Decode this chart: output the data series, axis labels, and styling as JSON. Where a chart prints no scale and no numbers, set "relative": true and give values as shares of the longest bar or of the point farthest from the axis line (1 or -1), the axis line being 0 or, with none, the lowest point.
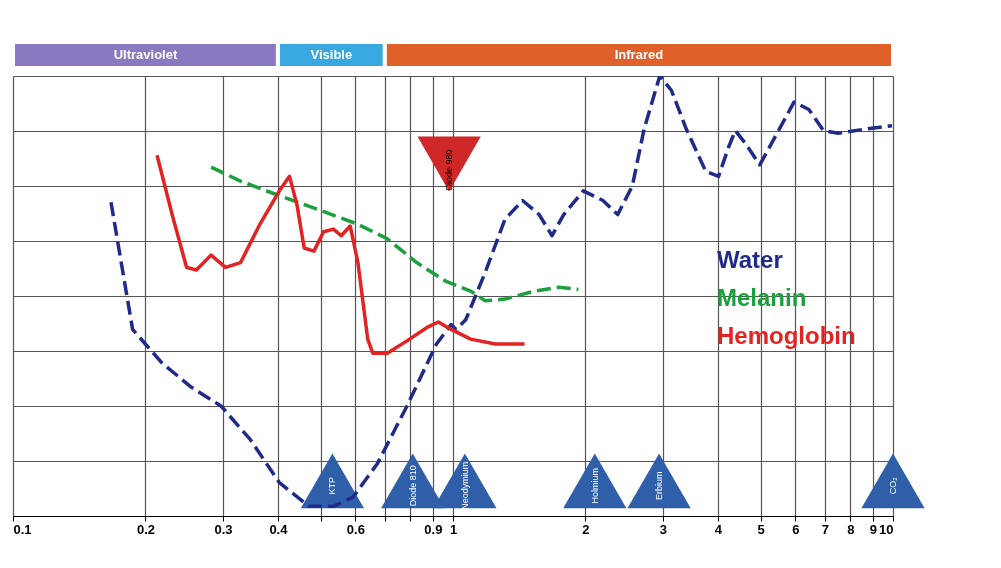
{
  "chart_data": {
    "type": "line",
    "relative": true,
    "log": "x",
    "xlim": [
      0.1,
      10
    ],
    "xticks": [
      0.1,
      0.2,
      0.3,
      0.4,
      {
        "value": 0.5,
        "label": null
      },
      0.6,
      {
        "value": 0.7,
        "label": null
      },
      {
        "value": 0.8,
        "label": null
      },
      0.9,
      1,
      2,
      3,
      4,
      5,
      6,
      7,
      8,
      9,
      10
    ],
    "grid": true,
    "tick_labels": "x",
    "legend": "right",
    "marker": "none",
    "series": [
      {
        "name": "Water",
        "color": "#1f2a8a",
        "line_style": "dashed",
        "x": [
          0.167,
          0.187,
          0.218,
          0.254,
          0.297,
          0.346,
          0.403,
          0.471,
          0.535,
          0.593,
          0.674,
          0.786,
          0.917,
          0.99,
          1.016,
          1.069,
          1.184,
          1.312,
          1.439,
          1.57,
          1.679,
          1.785,
          1.978,
          2.192,
          2.367,
          2.556,
          2.719,
          2.951,
          3.138,
          3.388,
          3.755,
          4.014,
          4.225,
          4.381,
          4.61,
          4.98,
          5.377,
          5.96,
          6.437,
          6.949,
          7.505,
          8.753,
          9.95
        ],
        "values": [
          0.713,
          0.424,
          0.348,
          0.293,
          0.25,
          0.174,
          0.076,
          0.022,
          0.022,
          0.043,
          0.12,
          0.25,
          0.391,
          0.435,
          0.424,
          0.446,
          0.554,
          0.674,
          0.717,
          0.685,
          0.637,
          0.685,
          0.739,
          0.717,
          0.685,
          0.75,
          0.88,
          1,
          0.967,
          0.88,
          0.783,
          0.772,
          0.837,
          0.876,
          0.848,
          0.798,
          0.859,
          0.941,
          0.924,
          0.876,
          0.87,
          0.88,
          0.887
        ]
      },
      {
        "name": "Melanin",
        "color": "#1aa03c",
        "line_style": "dashed",
        "x": [
          0.282,
          0.329,
          0.403,
          0.495,
          0.608,
          0.709,
          0.827,
          0.965,
          1.097,
          1.184,
          1.312,
          1.531,
          1.74,
          1.928
        ],
        "values": [
          0.793,
          0.761,
          0.728,
          0.696,
          0.663,
          0.63,
          0.576,
          0.533,
          0.511,
          0.489,
          0.493,
          0.511,
          0.52,
          0.515
        ]
      },
      {
        "name": "Hemoglobin",
        "color": "#e52222",
        "line_style": "solid",
        "x": [
          0.2125,
          0.23,
          0.248,
          0.261,
          0.282,
          0.304,
          0.329,
          0.364,
          0.403,
          0.425,
          0.442,
          0.459,
          0.483,
          0.508,
          0.535,
          0.557,
          0.584,
          0.608,
          0.64,
          0.657,
          0.709,
          0.786,
          0.871,
          0.926,
          0.99,
          1.097,
          1.247,
          1.454
        ],
        "values": [
          0.82,
          0.685,
          0.565,
          0.559,
          0.593,
          0.565,
          0.576,
          0.663,
          0.739,
          0.772,
          0.707,
          0.609,
          0.602,
          0.646,
          0.652,
          0.637,
          0.659,
          0.576,
          0.402,
          0.37,
          0.37,
          0.398,
          0.428,
          0.441,
          0.424,
          0.402,
          0.391,
          0.391
        ]
      }
    ],
    "annotations": [
      "Ultraviolet",
      "Visible",
      "Infrared",
      "KTP",
      "Diode 810",
      "Neodymium",
      "Holmium",
      "Erbium",
      "CO₂",
      "Diode 980"
    ]
  }
}
